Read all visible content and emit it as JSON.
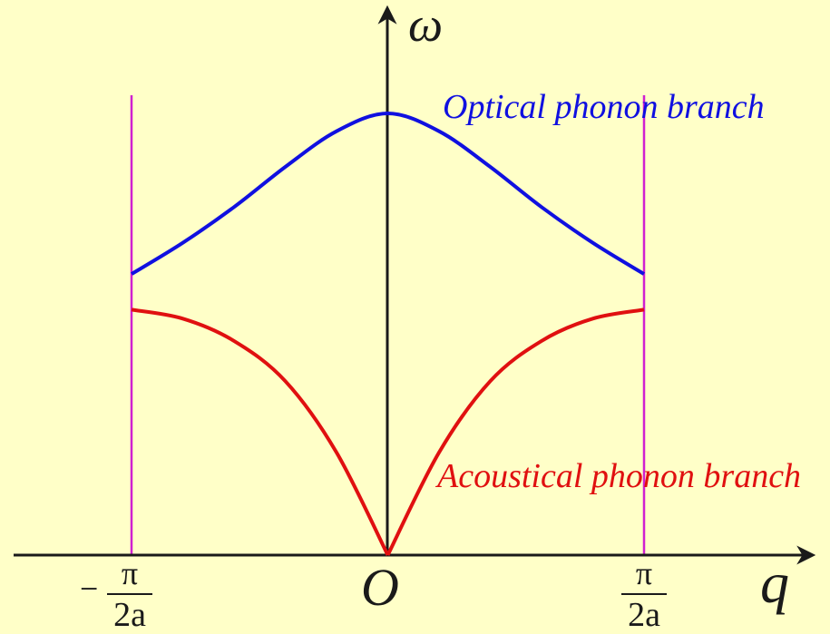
{
  "axes": {
    "y_label": "ω",
    "x_label": "q",
    "origin_label": "O"
  },
  "boundaries": {
    "left": {
      "sign": "−",
      "numerator": "π",
      "denominator": "2a"
    },
    "right": {
      "numerator": "π",
      "denominator": "2a"
    }
  },
  "branches": {
    "optical": {
      "label": "Optical phonon branch",
      "color": "#1010e0"
    },
    "acoustical": {
      "label": "Acoustical phonon branch",
      "color": "#e01010"
    }
  },
  "colors": {
    "background": "#ffffc8",
    "axes": "#1a1a1a",
    "boundary_lines": "#d020d0"
  },
  "chart_data": {
    "type": "line",
    "xlabel": "q",
    "ylabel": "ω",
    "xlim": [
      -1,
      1
    ],
    "series": [
      {
        "name": "Optical phonon branch",
        "x": [
          -1,
          -0.8,
          -0.6,
          -0.4,
          -0.2,
          0,
          0.2,
          0.4,
          0.6,
          0.8,
          1
        ],
        "values": [
          0.63,
          0.7,
          0.78,
          0.87,
          0.95,
          0.99,
          0.95,
          0.87,
          0.78,
          0.7,
          0.63
        ]
      },
      {
        "name": "Acoustical phonon branch",
        "x": [
          -1,
          -0.8,
          -0.6,
          -0.4,
          -0.2,
          0,
          0.2,
          0.4,
          0.6,
          0.8,
          1
        ],
        "values": [
          0.55,
          0.53,
          0.48,
          0.39,
          0.23,
          0,
          0.23,
          0.39,
          0.48,
          0.53,
          0.55
        ]
      }
    ]
  }
}
